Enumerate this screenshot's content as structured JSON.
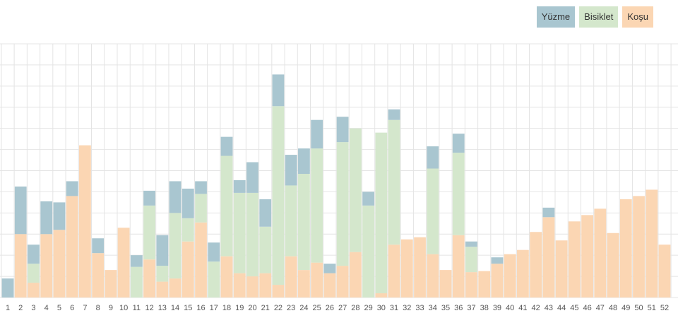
{
  "legend": {
    "swim": "Yüzme",
    "bike": "Bisiklet",
    "run": "Koşu"
  },
  "colors": {
    "swim": "#a9c6d0",
    "bike": "#d4e7cc",
    "run": "#fbd6b3",
    "grid": "#e4e4e4"
  },
  "chart_data": {
    "type": "bar",
    "stacked": true,
    "title": "",
    "xlabel": "",
    "ylabel": "",
    "ylim": [
      0,
      24
    ],
    "grid": true,
    "legend_position": "top-right",
    "categories": [
      "1",
      "2",
      "3",
      "4",
      "5",
      "6",
      "7",
      "8",
      "9",
      "10",
      "11",
      "12",
      "13",
      "14",
      "15",
      "16",
      "17",
      "18",
      "19",
      "20",
      "21",
      "22",
      "23",
      "24",
      "25",
      "26",
      "27",
      "28",
      "29",
      "30",
      "31",
      "32",
      "33",
      "34",
      "35",
      "36",
      "37",
      "38",
      "39",
      "40",
      "41",
      "42",
      "43",
      "44",
      "45",
      "46",
      "47",
      "48",
      "49",
      "50",
      "51",
      "52"
    ],
    "series": [
      {
        "name": "Koşu",
        "key": "run",
        "values": [
          0,
          6,
          1.4,
          6,
          6.4,
          9.6,
          14.4,
          4.2,
          2.6,
          6.6,
          0,
          3.6,
          1.5,
          1.8,
          5.3,
          7.1,
          0,
          3.9,
          2.3,
          2,
          2.3,
          1.2,
          3.9,
          2.6,
          3.3,
          2.3,
          3,
          4.3,
          0,
          0.4,
          5,
          5.5,
          5.7,
          4.1,
          2.6,
          5.9,
          2.4,
          2.5,
          3.2,
          4.1,
          4.5,
          6.2,
          7.6,
          5.4,
          7.2,
          7.8,
          8.4,
          6.1,
          9.3,
          9.6,
          10.2,
          5
        ]
      },
      {
        "name": "Bisiklet",
        "key": "bike",
        "values": [
          0,
          0,
          1.8,
          0,
          0,
          0,
          0,
          0,
          0,
          0,
          2.9,
          5.1,
          1.5,
          6.2,
          2.2,
          2.7,
          3.4,
          9.5,
          7.6,
          7.9,
          4.4,
          16.9,
          6.7,
          9.1,
          10.8,
          0,
          11.7,
          11.7,
          8.7,
          15.2,
          11.8,
          0,
          0,
          8.1,
          0,
          7.8,
          2.4,
          0,
          0,
          0,
          0,
          0,
          0,
          0,
          0,
          0,
          0,
          0,
          0,
          0,
          0,
          0
        ]
      },
      {
        "name": "Yüzme",
        "key": "swim",
        "values": [
          1.8,
          4.5,
          1.8,
          3.1,
          2.6,
          1.4,
          0,
          1.4,
          0,
          0,
          1.1,
          1.4,
          2.9,
          3,
          2.8,
          1.2,
          1.8,
          1.8,
          1.2,
          2.9,
          2.6,
          3,
          2.9,
          2.4,
          2.7,
          0.9,
          2.4,
          0,
          1.3,
          0,
          1,
          0,
          0,
          2.1,
          0,
          1.8,
          0.5,
          0,
          0.6,
          0,
          0,
          0,
          0.9,
          0,
          0,
          0,
          0,
          0,
          0,
          0,
          0,
          0
        ]
      }
    ]
  }
}
